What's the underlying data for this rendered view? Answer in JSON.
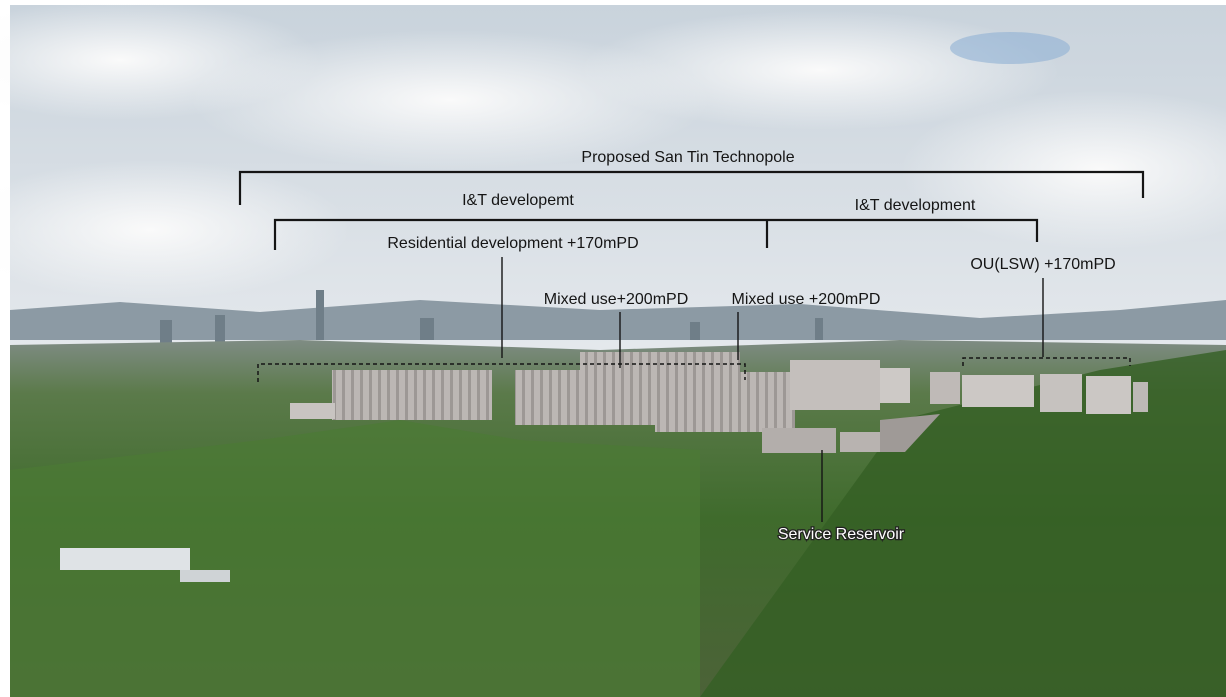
{
  "annotations": {
    "technopole": "Proposed San Tin Technopole",
    "it_left": "I&T developemt",
    "it_right": "I&T development",
    "residential": "Residential development +170mPD",
    "mixed_left": "Mixed use+200mPD",
    "mixed_right": "Mixed use +200mPD",
    "ou": "OU(LSW) +170mPD",
    "reservoir": "Service Reservoir"
  }
}
